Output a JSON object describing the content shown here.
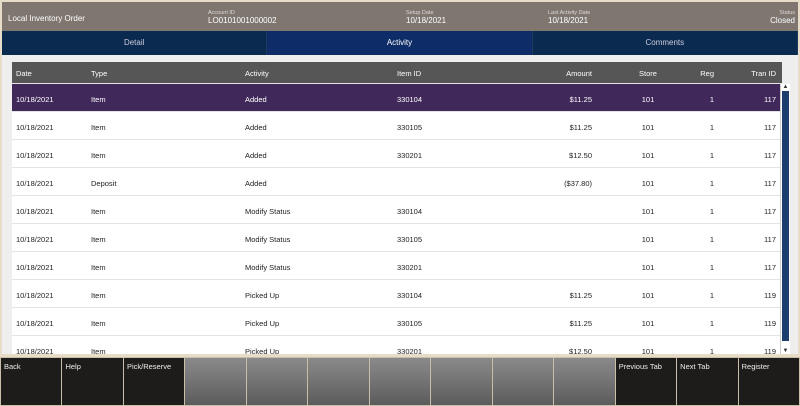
{
  "header": {
    "title": "Local Inventory Order",
    "fields": [
      {
        "label": "Account ID",
        "value": "LO0101001000002"
      },
      {
        "label": "Setup Date",
        "value": "10/18/2021"
      },
      {
        "label": "Last Activity Date",
        "value": "10/18/2021"
      },
      {
        "label": "Status",
        "value": "Closed"
      }
    ]
  },
  "tabs": [
    {
      "label": "Detail"
    },
    {
      "label": "Activity",
      "active": true
    },
    {
      "label": "Comments"
    }
  ],
  "table": {
    "columns": [
      "Date",
      "Type",
      "Activity",
      "Item ID",
      "Amount",
      "Store",
      "Reg",
      "Tran ID"
    ],
    "rows": [
      [
        "10/18/2021",
        "Item",
        "Added",
        "330104",
        "$11.25",
        "101",
        "1",
        "117"
      ],
      [
        "10/18/2021",
        "Item",
        "Added",
        "330105",
        "$11.25",
        "101",
        "1",
        "117"
      ],
      [
        "10/18/2021",
        "Item",
        "Added",
        "330201",
        "$12.50",
        "101",
        "1",
        "117"
      ],
      [
        "10/18/2021",
        "Deposit",
        "Added",
        "",
        "($37.80)",
        "101",
        "1",
        "117"
      ],
      [
        "10/18/2021",
        "Item",
        "Modify Status",
        "330104",
        "",
        "101",
        "1",
        "117"
      ],
      [
        "10/18/2021",
        "Item",
        "Modify Status",
        "330105",
        "",
        "101",
        "1",
        "117"
      ],
      [
        "10/18/2021",
        "Item",
        "Modify Status",
        "330201",
        "",
        "101",
        "1",
        "117"
      ],
      [
        "10/18/2021",
        "Item",
        "Picked Up",
        "330104",
        "$11.25",
        "101",
        "1",
        "119"
      ],
      [
        "10/18/2021",
        "Item",
        "Picked Up",
        "330105",
        "$11.25",
        "101",
        "1",
        "119"
      ],
      [
        "10/18/2021",
        "Item",
        "Picked Up",
        "330201",
        "$12.50",
        "101",
        "1",
        "119"
      ]
    ],
    "selected_row": 0
  },
  "function_keys": [
    "Back",
    "Help",
    "Pick/Reserve",
    "",
    "",
    "",
    "",
    "",
    "",
    "",
    "Previous Tab",
    "Next Tab",
    "Register"
  ],
  "colors": {
    "header": "#7f7670",
    "tabs": "#0b2a4f",
    "selected_row": "#40295a"
  }
}
